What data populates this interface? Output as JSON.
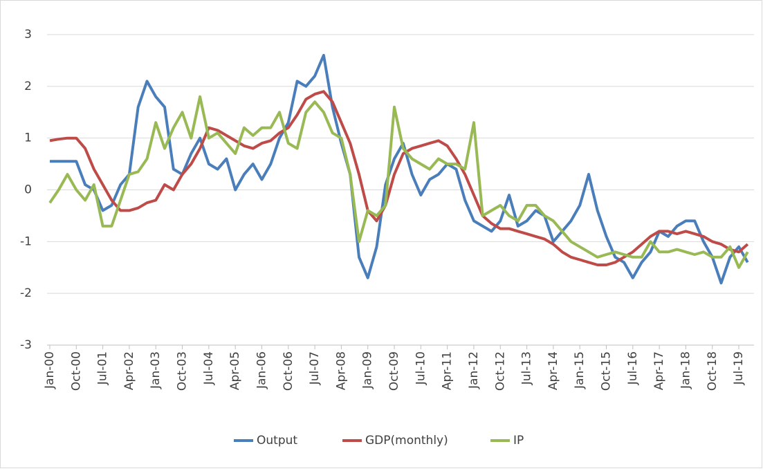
{
  "chart_data": {
    "type": "line",
    "categories": [
      "Jan-00",
      null,
      null,
      "Oct-00",
      null,
      null,
      "Jul-01",
      null,
      null,
      "Apr-02",
      null,
      null,
      "Jan-03",
      null,
      null,
      "Oct-03",
      null,
      null,
      "Jul-04",
      null,
      null,
      "Apr-05",
      null,
      null,
      "Jan-06",
      null,
      null,
      "Oct-06",
      null,
      null,
      "Jul-07",
      null,
      null,
      "Apr-08",
      null,
      null,
      "Jan-09",
      null,
      null,
      "Oct-09",
      null,
      null,
      "Jul-10",
      null,
      null,
      "Apr-11",
      null,
      null,
      "Jan-12",
      null,
      null,
      "Oct-12",
      null,
      null,
      "Jul-13",
      null,
      null,
      "Apr-14",
      null,
      null,
      "Jan-15",
      null,
      null,
      "Oct-15",
      null,
      null,
      "Jul-16",
      null,
      null,
      "Apr-17",
      null,
      null,
      "Jan-18",
      null,
      null,
      "Oct-18",
      null,
      null,
      "Jul-19",
      null
    ],
    "series": [
      {
        "name": "Output",
        "color": "#4a7ebb",
        "values": [
          0.55,
          0.55,
          0.55,
          0.55,
          0.1,
          0.0,
          -0.4,
          -0.3,
          0.1,
          0.3,
          1.6,
          2.1,
          1.8,
          1.6,
          0.4,
          0.3,
          0.7,
          1.0,
          0.5,
          0.4,
          0.6,
          0.0,
          0.3,
          0.5,
          0.2,
          0.5,
          1.0,
          1.3,
          2.1,
          2.0,
          2.2,
          2.6,
          1.6,
          0.9,
          0.3,
          -1.3,
          -1.7,
          -1.1,
          0.1,
          0.6,
          0.9,
          0.3,
          -0.1,
          0.2,
          0.3,
          0.5,
          0.4,
          -0.2,
          -0.6,
          -0.7,
          -0.8,
          -0.6,
          -0.1,
          -0.7,
          -0.6,
          -0.4,
          -0.5,
          -1.0,
          -0.8,
          -0.6,
          -0.3,
          0.3,
          -0.4,
          -0.9,
          -1.3,
          -1.4,
          -1.7,
          -1.4,
          -1.2,
          -0.8,
          -0.9,
          -0.7,
          -0.6,
          -0.6,
          -1.0,
          -1.3,
          -1.8,
          -1.3,
          -1.1,
          -1.4
        ]
      },
      {
        "name": "GDP(monthly)",
        "color": "#be4b48",
        "values": [
          0.95,
          0.98,
          1.0,
          1.0,
          0.8,
          0.4,
          0.1,
          -0.2,
          -0.4,
          -0.4,
          -0.35,
          -0.25,
          -0.2,
          0.1,
          0.0,
          0.3,
          0.5,
          0.8,
          1.2,
          1.15,
          1.05,
          0.95,
          0.85,
          0.8,
          0.9,
          0.95,
          1.1,
          1.2,
          1.45,
          1.75,
          1.85,
          1.9,
          1.7,
          1.3,
          0.9,
          0.3,
          -0.4,
          -0.6,
          -0.3,
          0.3,
          0.7,
          0.8,
          0.85,
          0.9,
          0.95,
          0.85,
          0.6,
          0.3,
          -0.1,
          -0.5,
          -0.65,
          -0.75,
          -0.75,
          -0.8,
          -0.85,
          -0.9,
          -0.95,
          -1.05,
          -1.2,
          -1.3,
          -1.35,
          -1.4,
          -1.45,
          -1.45,
          -1.4,
          -1.3,
          -1.2,
          -1.05,
          -0.9,
          -0.8,
          -0.8,
          -0.85,
          -0.8,
          -0.85,
          -0.9,
          -1.0,
          -1.05,
          -1.15,
          -1.2,
          -1.05
        ]
      },
      {
        "name": "IP",
        "color": "#98b954",
        "values": [
          -0.25,
          0.0,
          0.3,
          0.0,
          -0.2,
          0.1,
          -0.7,
          -0.7,
          -0.2,
          0.3,
          0.35,
          0.6,
          1.3,
          0.8,
          1.2,
          1.5,
          1.0,
          1.8,
          1.0,
          1.1,
          0.9,
          0.7,
          1.2,
          1.05,
          1.2,
          1.2,
          1.5,
          0.9,
          0.8,
          1.5,
          1.7,
          1.5,
          1.1,
          1.0,
          0.3,
          -1.0,
          -0.4,
          -0.5,
          -0.3,
          1.6,
          0.8,
          0.6,
          0.5,
          0.4,
          0.6,
          0.5,
          0.5,
          0.4,
          1.3,
          -0.5,
          -0.4,
          -0.3,
          -0.5,
          -0.6,
          -0.3,
          -0.3,
          -0.5,
          -0.6,
          -0.8,
          -1.0,
          -1.1,
          -1.2,
          -1.3,
          -1.25,
          -1.2,
          -1.25,
          -1.3,
          -1.3,
          -1.0,
          -1.2,
          -1.2,
          -1.15,
          -1.2,
          -1.25,
          -1.2,
          -1.3,
          -1.3,
          -1.1,
          -1.5,
          -1.2
        ]
      }
    ],
    "ylim": [
      -3,
      3
    ],
    "yticks": [
      -3,
      -2,
      -1,
      0,
      1,
      2,
      3
    ],
    "grid": true
  }
}
